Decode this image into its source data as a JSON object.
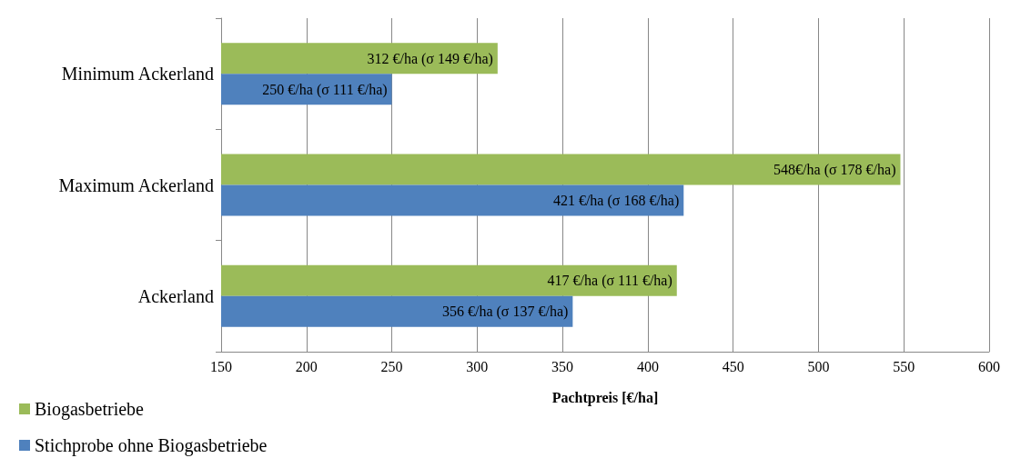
{
  "chart_data": {
    "type": "bar",
    "orientation": "horizontal",
    "xlabel": "Pachtpreis [€/ha]",
    "categories": [
      "Minimum Ackerland",
      "Maximum Ackerland",
      "Ackerland"
    ],
    "series": [
      {
        "name": "Biogasbetriebe",
        "color": "#9bbb59",
        "values": [
          312,
          548,
          417
        ],
        "value_labels": [
          "312 €/ha (σ 149 €/ha)",
          "548€/ha (σ 178 €/ha)",
          "417 €/ha (σ 111 €/ha)"
        ]
      },
      {
        "name": "Stichprobe ohne Biogasbetriebe",
        "color": "#4f81bd",
        "values": [
          250,
          421,
          356
        ],
        "value_labels": [
          "250 €/ha (σ 111 €/ha)",
          "421 €/ha (σ 168 €/ha)",
          "356 €/ha (σ 137 €/ha)"
        ]
      }
    ],
    "xlim": [
      150,
      600
    ],
    "xticks": [
      150,
      200,
      250,
      300,
      350,
      400,
      450,
      500,
      550,
      600
    ],
    "grid": "x",
    "legend": "bottom left"
  }
}
